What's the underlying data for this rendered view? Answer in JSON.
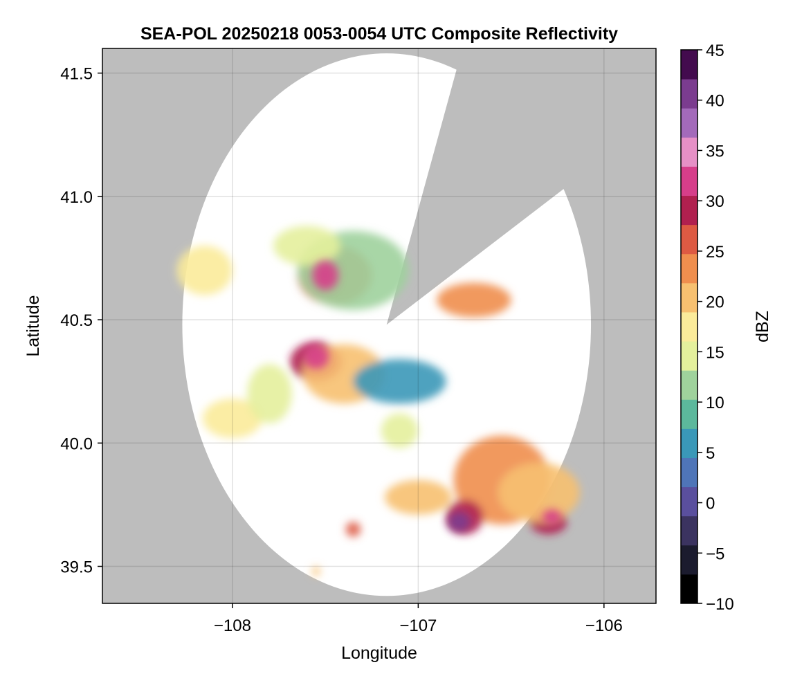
{
  "chart_data": {
    "type": "heatmap",
    "title": "SEA-POL 20250218 0053-0054 UTC Composite Reflectivity",
    "xlabel": "Longitude",
    "ylabel": "Latitude",
    "xlim": [
      -108.7,
      -105.72
    ],
    "ylim": [
      39.35,
      41.6
    ],
    "x_ticks": [
      -108,
      -107,
      -106
    ],
    "x_tick_labels": [
      "−108",
      "−107",
      "−106"
    ],
    "y_ticks": [
      39.5,
      40.0,
      40.5,
      41.0,
      41.5
    ],
    "y_tick_labels": [
      "39.5",
      "40.0",
      "40.5",
      "41.0",
      "41.5"
    ],
    "grid": true,
    "background_color": "#bdbdbd",
    "radar": {
      "center_lon": -107.17,
      "center_lat": 40.48,
      "range_deg": 1.1,
      "blocked_sector_deg": [
        20,
        60
      ]
    },
    "colorbar": {
      "label": "dBZ",
      "min": -10,
      "max": 45,
      "ticks": [
        -10,
        -5,
        0,
        5,
        10,
        15,
        20,
        25,
        30,
        35,
        40,
        45
      ],
      "tick_labels": [
        "−10",
        "−5",
        "0",
        "5",
        "10",
        "15",
        "20",
        "25",
        "30",
        "35",
        "40",
        "45"
      ],
      "colors": [
        "#000000",
        "#1b1b2e",
        "#3b3360",
        "#5a4f9e",
        "#4f75b8",
        "#3a98b8",
        "#5cb89c",
        "#9fd29c",
        "#e4f09c",
        "#fbeb9a",
        "#f7c070",
        "#ef8e4e",
        "#dd5a43",
        "#b0204f",
        "#d63e8a",
        "#e690c6",
        "#a36aba",
        "#7b3c8f",
        "#430b4e"
      ]
    },
    "cells": [
      {
        "lon": -107.55,
        "lat": 40.33,
        "dbz": 30,
        "rx": 0.14,
        "ry": 0.08
      },
      {
        "lon": -107.4,
        "lat": 40.28,
        "dbz": 20,
        "rx": 0.22,
        "ry": 0.12
      },
      {
        "lon": -107.1,
        "lat": 40.25,
        "dbz": 6,
        "rx": 0.25,
        "ry": 0.09
      },
      {
        "lon": -107.45,
        "lat": 40.68,
        "dbz": 26,
        "rx": 0.2,
        "ry": 0.12
      },
      {
        "lon": -107.35,
        "lat": 40.7,
        "dbz": 12,
        "rx": 0.3,
        "ry": 0.16
      },
      {
        "lon": -107.6,
        "lat": 40.8,
        "dbz": 15,
        "rx": 0.18,
        "ry": 0.08
      },
      {
        "lon": -106.7,
        "lat": 40.58,
        "dbz": 22,
        "rx": 0.2,
        "ry": 0.07
      },
      {
        "lon": -108.15,
        "lat": 40.7,
        "dbz": 17,
        "rx": 0.15,
        "ry": 0.1
      },
      {
        "lon": -108.0,
        "lat": 40.1,
        "dbz": 18,
        "rx": 0.16,
        "ry": 0.08
      },
      {
        "lon": -107.8,
        "lat": 40.2,
        "dbz": 15,
        "rx": 0.12,
        "ry": 0.12
      },
      {
        "lon": -106.55,
        "lat": 39.85,
        "dbz": 24,
        "rx": 0.26,
        "ry": 0.18
      },
      {
        "lon": -106.75,
        "lat": 39.7,
        "dbz": 30,
        "rx": 0.1,
        "ry": 0.07
      },
      {
        "lon": -106.3,
        "lat": 39.68,
        "dbz": 28,
        "rx": 0.1,
        "ry": 0.05
      },
      {
        "lon": -106.35,
        "lat": 39.8,
        "dbz": 20,
        "rx": 0.22,
        "ry": 0.12
      },
      {
        "lon": -107.0,
        "lat": 39.78,
        "dbz": 19,
        "rx": 0.18,
        "ry": 0.07
      },
      {
        "lon": -107.1,
        "lat": 40.05,
        "dbz": 14,
        "rx": 0.1,
        "ry": 0.07
      },
      {
        "lon": -107.35,
        "lat": 39.65,
        "dbz": 26,
        "rx": 0.04,
        "ry": 0.03
      },
      {
        "lon": -107.55,
        "lat": 39.48,
        "dbz": 20,
        "rx": 0.02,
        "ry": 0.02
      }
    ],
    "core_cells": [
      {
        "lon": -106.78,
        "lat": 39.68,
        "dbz": 40,
        "rx": 0.06,
        "ry": 0.04
      },
      {
        "lon": -107.5,
        "lat": 40.68,
        "dbz": 33,
        "rx": 0.07,
        "ry": 0.06
      },
      {
        "lon": -107.55,
        "lat": 40.35,
        "dbz": 32,
        "rx": 0.07,
        "ry": 0.05
      },
      {
        "lon": -106.28,
        "lat": 39.7,
        "dbz": 33,
        "rx": 0.05,
        "ry": 0.03
      }
    ]
  }
}
